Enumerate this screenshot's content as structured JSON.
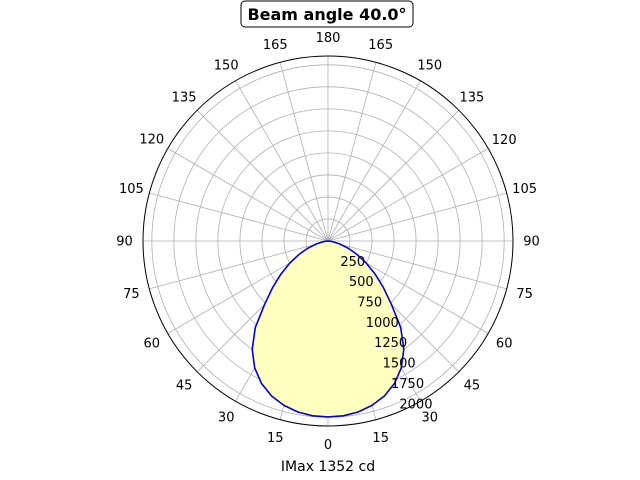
{
  "chart_data": {
    "type": "polar-line",
    "title": "Beam angle 40.0°",
    "xlabel": "IMax 1352 cd",
    "angle_ticks": [
      {
        "deg": 0,
        "label": "0"
      },
      {
        "deg": 15,
        "label": "15"
      },
      {
        "deg": 30,
        "label": "30"
      },
      {
        "deg": 45,
        "label": "45"
      },
      {
        "deg": 60,
        "label": "60"
      },
      {
        "deg": 75,
        "label": "75"
      },
      {
        "deg": 90,
        "label": "90"
      },
      {
        "deg": 105,
        "label": "105"
      },
      {
        "deg": 120,
        "label": "120"
      },
      {
        "deg": 135,
        "label": "135"
      },
      {
        "deg": 150,
        "label": "150"
      },
      {
        "deg": 165,
        "label": "165"
      },
      {
        "deg": 180,
        "label": "180"
      },
      {
        "deg": 195,
        "label": "165"
      },
      {
        "deg": 210,
        "label": "150"
      },
      {
        "deg": 225,
        "label": "135"
      },
      {
        "deg": 240,
        "label": "120"
      },
      {
        "deg": 255,
        "label": "105"
      },
      {
        "deg": 270,
        "label": "90"
      },
      {
        "deg": 285,
        "label": "75"
      },
      {
        "deg": 300,
        "label": "60"
      },
      {
        "deg": 315,
        "label": "45"
      },
      {
        "deg": 330,
        "label": "30"
      },
      {
        "deg": 345,
        "label": "15"
      }
    ],
    "radial_ticks": [
      250,
      500,
      750,
      1000,
      1250,
      1500,
      1750,
      2000
    ],
    "rlim": [
      0,
      2100
    ],
    "grid": true,
    "series": [
      {
        "color": "#0000dd",
        "fill": "#ffffc0",
        "angles_deg": [
          0,
          5,
          10,
          15,
          20,
          25,
          30,
          35,
          40,
          45,
          50,
          55,
          60,
          65,
          70,
          75,
          80,
          85,
          90
        ],
        "values": [
          1997,
          1992,
          1971,
          1932,
          1872,
          1785,
          1664,
          1500,
          1285,
          1018,
          820,
          650,
          500,
          365,
          250,
          150,
          72,
          20,
          0
        ]
      }
    ]
  }
}
